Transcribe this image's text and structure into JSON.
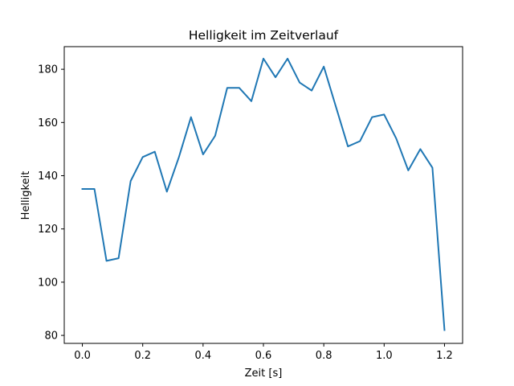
{
  "chart_data": {
    "type": "line",
    "title": "Helligkeit im Zeitverlauf",
    "xlabel": "Zeit [s]",
    "ylabel": "Helligkeit",
    "xlim": [
      -0.06,
      1.26
    ],
    "ylim": [
      77,
      188.5
    ],
    "grid": false,
    "legend": "none",
    "x_ticks": [
      0.0,
      0.2,
      0.4,
      0.6,
      0.8,
      1.0,
      1.2
    ],
    "x_tick_labels": [
      "0.0",
      "0.2",
      "0.4",
      "0.6",
      "0.8",
      "1.0",
      "1.2"
    ],
    "y_ticks": [
      80,
      100,
      120,
      140,
      160,
      180
    ],
    "y_tick_labels": [
      "80",
      "100",
      "120",
      "140",
      "160",
      "180"
    ],
    "series": [
      {
        "color": "#1f77b4",
        "x": [
          0.0,
          0.04,
          0.08,
          0.12,
          0.16,
          0.2,
          0.24,
          0.28,
          0.32,
          0.36,
          0.4,
          0.44,
          0.48,
          0.52,
          0.56,
          0.6,
          0.64,
          0.68,
          0.72,
          0.76,
          0.8,
          0.84,
          0.88,
          0.92,
          0.96,
          1.0,
          1.04,
          1.08,
          1.12,
          1.16,
          1.2
        ],
        "y": [
          135,
          135,
          108,
          109,
          138,
          147,
          149,
          134,
          147,
          162,
          148,
          155,
          173,
          173,
          168,
          184,
          177,
          184,
          175,
          172,
          181,
          166,
          151,
          153,
          162,
          163,
          154,
          142,
          150,
          143,
          82
        ]
      }
    ]
  }
}
